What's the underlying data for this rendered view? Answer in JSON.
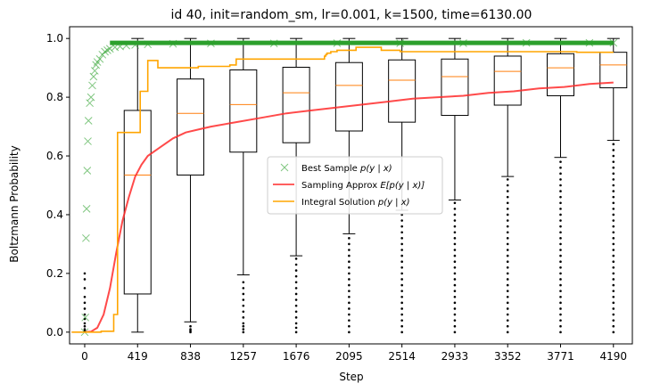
{
  "chart_data": {
    "type": "line",
    "title": "id 40, init=random_sm, lr=0.001, k=1500, time=6130.00",
    "xlabel": "Step",
    "ylabel": "Boltzmann Probability",
    "xlim": [
      -120,
      4340
    ],
    "ylim": [
      -0.04,
      1.04
    ],
    "x_ticks": [
      0,
      419,
      838,
      1257,
      1676,
      2095,
      2514,
      2933,
      3352,
      3771,
      4190
    ],
    "y_ticks": [
      0.0,
      0.2,
      0.4,
      0.6,
      0.8,
      1.0
    ],
    "y_tick_labels": [
      "0.0",
      "0.2",
      "0.4",
      "0.6",
      "0.8",
      "1.0"
    ],
    "grid": false,
    "legend_position": "center-right",
    "colors": {
      "best": "#2ca02c",
      "sampling": "#ff2a2a",
      "integral": "#ffa500",
      "box": "#000000",
      "median": "#ff7f0e"
    },
    "series": [
      {
        "name": "Best Sample $p(y \\mid x)$",
        "label_parts": [
          "Best Sample ",
          "p(y | x)"
        ],
        "marker": "x",
        "x": [
          0,
          5,
          10,
          15,
          20,
          25,
          30,
          40,
          50,
          60,
          70,
          80,
          90,
          100,
          120,
          140,
          160,
          180,
          200,
          240,
          280,
          330,
          400,
          500,
          700,
          1000,
          1500,
          2000,
          2500,
          3000,
          3500,
          4000,
          4190
        ],
        "y": [
          0.0,
          0.05,
          0.32,
          0.42,
          0.55,
          0.65,
          0.72,
          0.78,
          0.8,
          0.84,
          0.87,
          0.89,
          0.91,
          0.92,
          0.93,
          0.945,
          0.955,
          0.96,
          0.965,
          0.97,
          0.973,
          0.976,
          0.978,
          0.98,
          0.982,
          0.983,
          0.983,
          0.984,
          0.984,
          0.984,
          0.985,
          0.985,
          0.985
        ]
      },
      {
        "name": "Sampling Approx $E[p(y \\mid x)]$",
        "label_parts": [
          "Sampling Approx ",
          "E[p(y | x)]"
        ],
        "x": [
          0,
          50,
          100,
          150,
          200,
          250,
          300,
          350,
          400,
          450,
          500,
          600,
          700,
          800,
          900,
          1000,
          1200,
          1400,
          1600,
          1800,
          2000,
          2200,
          2400,
          2600,
          2800,
          3000,
          3200,
          3400,
          3600,
          3800,
          4000,
          4190
        ],
        "y": [
          0.0,
          0.002,
          0.015,
          0.06,
          0.15,
          0.27,
          0.38,
          0.46,
          0.53,
          0.57,
          0.6,
          0.63,
          0.66,
          0.68,
          0.69,
          0.7,
          0.715,
          0.73,
          0.745,
          0.755,
          0.765,
          0.775,
          0.785,
          0.795,
          0.8,
          0.805,
          0.815,
          0.82,
          0.83,
          0.835,
          0.845,
          0.85
        ]
      },
      {
        "name": "Integral Solution $p(y \\mid x)$",
        "label_parts": [
          "Integral Solution ",
          "p(y | x)"
        ],
        "step": true,
        "x": [
          -100,
          130,
          230,
          260,
          420,
          440,
          500,
          580,
          900,
          1150,
          1200,
          1850,
          1900,
          1910,
          1920,
          1950,
          2000,
          2150,
          2250,
          2350,
          2500,
          3000,
          3900,
          4190
        ],
        "y": [
          0.0,
          0.003,
          0.06,
          0.68,
          0.68,
          0.82,
          0.925,
          0.9,
          0.905,
          0.91,
          0.93,
          0.93,
          0.94,
          0.945,
          0.95,
          0.955,
          0.96,
          0.97,
          0.97,
          0.96,
          0.955,
          0.955,
          0.953,
          0.953
        ]
      }
    ],
    "boxes": [
      {
        "x": 0,
        "whislo": 0.0,
        "q1": 0.0,
        "median": 0.0,
        "q3": 0.0,
        "whishi": 0.0,
        "fliers": [
          0.005,
          0.01,
          0.02,
          0.03,
          0.045,
          0.06,
          0.08,
          0.1,
          0.12,
          0.15,
          0.18,
          0.2
        ]
      },
      {
        "x": 419,
        "whislo": 0.0,
        "q1": 0.13,
        "median": 0.535,
        "q3": 0.755,
        "whishi": 1.0,
        "fliers": []
      },
      {
        "x": 838,
        "whislo": 0.035,
        "q1": 0.535,
        "median": 0.745,
        "q3": 0.862,
        "whishi": 1.0,
        "fliers": [
          0.0,
          0.005,
          0.01,
          0.02
        ]
      },
      {
        "x": 1257,
        "whislo": 0.195,
        "q1": 0.613,
        "median": 0.775,
        "q3": 0.893,
        "whishi": 1.0,
        "fliers": [
          0.0,
          0.01,
          0.02,
          0.03,
          0.05,
          0.07,
          0.09,
          0.11,
          0.13,
          0.15,
          0.17
        ]
      },
      {
        "x": 1676,
        "whislo": 0.26,
        "q1": 0.645,
        "median": 0.815,
        "q3": 0.902,
        "whishi": 1.0,
        "fliers": [
          0.0,
          0.015,
          0.03,
          0.05,
          0.07,
          0.09,
          0.11,
          0.13,
          0.15,
          0.17,
          0.19,
          0.21,
          0.23,
          0.25
        ]
      },
      {
        "x": 2095,
        "whislo": 0.335,
        "q1": 0.685,
        "median": 0.84,
        "q3": 0.918,
        "whishi": 1.0,
        "fliers": [
          0.0,
          0.02,
          0.04,
          0.06,
          0.08,
          0.1,
          0.12,
          0.14,
          0.16,
          0.18,
          0.2,
          0.22,
          0.24,
          0.26,
          0.28,
          0.3,
          0.32
        ]
      },
      {
        "x": 2514,
        "whislo": 0.415,
        "q1": 0.715,
        "median": 0.858,
        "q3": 0.927,
        "whishi": 1.0,
        "fliers": [
          0.0,
          0.02,
          0.04,
          0.06,
          0.08,
          0.1,
          0.12,
          0.14,
          0.16,
          0.18,
          0.2,
          0.22,
          0.24,
          0.26,
          0.28,
          0.3,
          0.32,
          0.34,
          0.36,
          0.38,
          0.4
        ]
      },
      {
        "x": 2933,
        "whislo": 0.45,
        "q1": 0.738,
        "median": 0.87,
        "q3": 0.93,
        "whishi": 1.0,
        "fliers": [
          0.0,
          0.02,
          0.04,
          0.06,
          0.08,
          0.1,
          0.12,
          0.14,
          0.16,
          0.18,
          0.2,
          0.22,
          0.24,
          0.26,
          0.28,
          0.3,
          0.32,
          0.34,
          0.36,
          0.38,
          0.4,
          0.42,
          0.44
        ]
      },
      {
        "x": 3352,
        "whislo": 0.53,
        "q1": 0.773,
        "median": 0.888,
        "q3": 0.94,
        "whishi": 1.0,
        "fliers": [
          0.0,
          0.02,
          0.04,
          0.06,
          0.08,
          0.1,
          0.12,
          0.14,
          0.16,
          0.18,
          0.2,
          0.22,
          0.24,
          0.26,
          0.28,
          0.3,
          0.32,
          0.34,
          0.36,
          0.38,
          0.4,
          0.42,
          0.44,
          0.46,
          0.48,
          0.5,
          0.52
        ]
      },
      {
        "x": 3771,
        "whislo": 0.595,
        "q1": 0.805,
        "median": 0.9,
        "q3": 0.948,
        "whishi": 1.0,
        "fliers": [
          0.0,
          0.02,
          0.04,
          0.06,
          0.08,
          0.1,
          0.12,
          0.14,
          0.16,
          0.18,
          0.2,
          0.22,
          0.24,
          0.26,
          0.28,
          0.3,
          0.32,
          0.34,
          0.36,
          0.38,
          0.4,
          0.42,
          0.44,
          0.46,
          0.48,
          0.5,
          0.52,
          0.54,
          0.56,
          0.58
        ]
      },
      {
        "x": 4190,
        "whislo": 0.653,
        "q1": 0.832,
        "median": 0.91,
        "q3": 0.953,
        "whishi": 1.0,
        "fliers": [
          0.0,
          0.02,
          0.04,
          0.06,
          0.08,
          0.1,
          0.12,
          0.14,
          0.16,
          0.18,
          0.2,
          0.22,
          0.24,
          0.26,
          0.28,
          0.3,
          0.32,
          0.34,
          0.36,
          0.38,
          0.4,
          0.42,
          0.44,
          0.46,
          0.48,
          0.5,
          0.52,
          0.54,
          0.56,
          0.58,
          0.6,
          0.62,
          0.64
        ]
      }
    ]
  }
}
